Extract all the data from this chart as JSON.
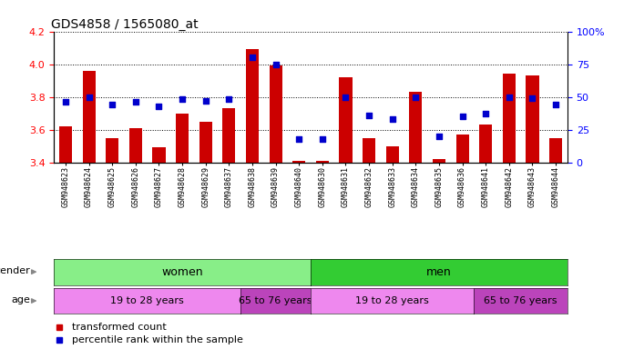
{
  "title": "GDS4858 / 1565080_at",
  "samples": [
    "GSM948623",
    "GSM948624",
    "GSM948625",
    "GSM948626",
    "GSM948627",
    "GSM948628",
    "GSM948629",
    "GSM948637",
    "GSM948638",
    "GSM948639",
    "GSM948640",
    "GSM948630",
    "GSM948631",
    "GSM948632",
    "GSM948633",
    "GSM948634",
    "GSM948635",
    "GSM948636",
    "GSM948641",
    "GSM948642",
    "GSM948643",
    "GSM948644"
  ],
  "transformed_count": [
    3.62,
    3.96,
    3.55,
    3.61,
    3.49,
    3.7,
    3.65,
    3.73,
    4.09,
    3.99,
    3.41,
    3.41,
    3.92,
    3.55,
    3.5,
    3.83,
    3.42,
    3.57,
    3.63,
    3.94,
    3.93,
    3.55
  ],
  "percentile_rank": [
    46,
    50,
    44,
    46,
    43,
    48,
    47,
    48,
    80,
    75,
    18,
    18,
    50,
    36,
    33,
    50,
    20,
    35,
    37,
    50,
    49,
    44
  ],
  "ylim_left": [
    3.4,
    4.2
  ],
  "ylim_right": [
    0,
    100
  ],
  "bar_color": "#cc0000",
  "dot_color": "#0000cc",
  "bg_color": "#ffffff",
  "gender_groups": [
    {
      "label": "women",
      "start": 0,
      "end": 10,
      "color": "#88ee88"
    },
    {
      "label": "men",
      "start": 11,
      "end": 21,
      "color": "#33cc33"
    }
  ],
  "age_groups": [
    {
      "label": "19 to 28 years",
      "start": 0,
      "end": 7,
      "color": "#ee88ee"
    },
    {
      "label": "65 to 76 years",
      "start": 8,
      "end": 10,
      "color": "#bb44bb"
    },
    {
      "label": "19 to 28 years",
      "start": 11,
      "end": 17,
      "color": "#ee88ee"
    },
    {
      "label": "65 to 76 years",
      "start": 18,
      "end": 21,
      "color": "#bb44bb"
    }
  ],
  "legend": [
    {
      "label": "transformed count",
      "color": "#cc0000"
    },
    {
      "label": "percentile rank within the sample",
      "color": "#0000cc"
    }
  ]
}
